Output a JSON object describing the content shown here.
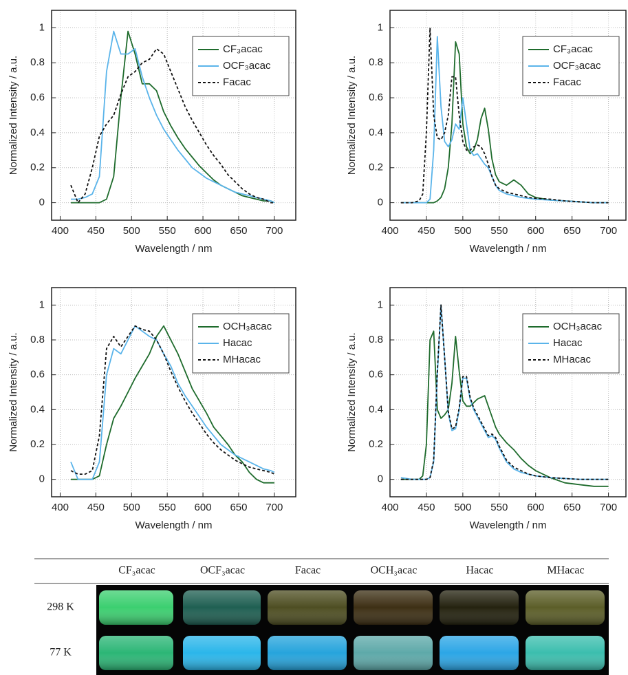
{
  "chart_data": [
    {
      "type": "line",
      "xlabel": "Wavelength / nm",
      "ylabel": "Normalized Intensity / a.u.",
      "xlim": [
        388,
        730
      ],
      "ylim": [
        -0.1,
        1.1
      ],
      "xticks": [
        400,
        450,
        500,
        550,
        600,
        650,
        700
      ],
      "yticks": [
        0,
        0.2,
        0.4,
        0.6,
        0.8,
        1
      ],
      "grid": true,
      "legend": "upper right",
      "x": [
        415,
        425,
        435,
        445,
        455,
        465,
        475,
        485,
        495,
        505,
        515,
        525,
        535,
        545,
        555,
        565,
        575,
        585,
        595,
        605,
        615,
        625,
        635,
        645,
        655,
        665,
        675,
        685,
        695,
        700
      ],
      "series": [
        {
          "name": "CF₃acac",
          "color": "#1e6b2c",
          "linestyle": "solid",
          "values": [
            0,
            0,
            0,
            0,
            0,
            0.02,
            0.15,
            0.6,
            0.98,
            0.85,
            0.68,
            0.68,
            0.64,
            0.52,
            0.44,
            0.37,
            0.31,
            0.26,
            0.21,
            0.17,
            0.13,
            0.1,
            0.08,
            0.06,
            0.04,
            0.03,
            0.02,
            0.01,
            0.01,
            0
          ]
        },
        {
          "name": "OCF₃acac",
          "color": "#5ab4ea",
          "linestyle": "solid",
          "values": [
            0.02,
            0.02,
            0.03,
            0.05,
            0.15,
            0.75,
            0.98,
            0.85,
            0.85,
            0.88,
            0.72,
            0.6,
            0.5,
            0.42,
            0.36,
            0.3,
            0.25,
            0.2,
            0.17,
            0.14,
            0.12,
            0.1,
            0.08,
            0.06,
            0.05,
            0.04,
            0.03,
            0.02,
            0.01,
            0
          ]
        },
        {
          "name": "Facac",
          "color": "#111111",
          "linestyle": "dashed",
          "values": [
            0.1,
            0,
            0.05,
            0.2,
            0.38,
            0.45,
            0.5,
            0.62,
            0.72,
            0.75,
            0.8,
            0.82,
            0.88,
            0.85,
            0.75,
            0.65,
            0.55,
            0.47,
            0.4,
            0.33,
            0.27,
            0.22,
            0.16,
            0.12,
            0.08,
            0.05,
            0.03,
            0.02,
            0,
            0
          ]
        }
      ]
    },
    {
      "type": "line",
      "xlabel": "Wavelength / nm",
      "ylabel": "Normalized Intensity / a.u.",
      "xlim": [
        400,
        724
      ],
      "ylim": [
        -0.1,
        1.1
      ],
      "xticks": [
        400,
        450,
        500,
        550,
        600,
        650,
        700
      ],
      "yticks": [
        0,
        0.2,
        0.4,
        0.6,
        0.8,
        1
      ],
      "grid": true,
      "legend": "upper right",
      "x": [
        415,
        430,
        440,
        445,
        450,
        455,
        460,
        465,
        470,
        475,
        480,
        485,
        490,
        495,
        500,
        505,
        510,
        515,
        520,
        525,
        530,
        535,
        540,
        545,
        550,
        560,
        570,
        580,
        590,
        600,
        620,
        640,
        660,
        680,
        700
      ],
      "series": [
        {
          "name": "CF₃acac",
          "color": "#1e6b2c",
          "linestyle": "solid",
          "values": [
            0,
            0,
            0,
            0,
            0,
            0,
            0,
            0.01,
            0.03,
            0.08,
            0.2,
            0.45,
            0.92,
            0.85,
            0.45,
            0.32,
            0.28,
            0.3,
            0.36,
            0.48,
            0.54,
            0.42,
            0.25,
            0.16,
            0.12,
            0.1,
            0.13,
            0.1,
            0.05,
            0.03,
            0.015,
            0.01,
            0.005,
            0,
            0
          ]
        },
        {
          "name": "OCF₃acac",
          "color": "#5ab4ea",
          "linestyle": "solid",
          "values": [
            0,
            0,
            0,
            0,
            0,
            0.02,
            0.3,
            0.95,
            0.55,
            0.35,
            0.32,
            0.36,
            0.45,
            0.42,
            0.6,
            0.45,
            0.3,
            0.27,
            0.28,
            0.25,
            0.22,
            0.2,
            0.15,
            0.1,
            0.07,
            0.05,
            0.04,
            0.03,
            0.025,
            0.02,
            0.015,
            0.01,
            0.005,
            0,
            0
          ]
        },
        {
          "name": "Facac",
          "color": "#111111",
          "linestyle": "dashed",
          "values": [
            0,
            0,
            0.01,
            0.05,
            0.4,
            1,
            0.5,
            0.37,
            0.36,
            0.4,
            0.5,
            0.72,
            0.72,
            0.5,
            0.35,
            0.3,
            0.3,
            0.32,
            0.33,
            0.32,
            0.28,
            0.22,
            0.15,
            0.1,
            0.08,
            0.06,
            0.05,
            0.04,
            0.03,
            0.025,
            0.02,
            0.01,
            0.005,
            0,
            0
          ]
        }
      ]
    },
    {
      "type": "line",
      "xlabel": "Wavelength / nm",
      "ylabel": "Normalized Intensity / a.u.",
      "xlim": [
        388,
        730
      ],
      "ylim": [
        -0.1,
        1.1
      ],
      "xticks": [
        400,
        450,
        500,
        550,
        600,
        650,
        700
      ],
      "yticks": [
        0,
        0.2,
        0.4,
        0.6,
        0.8,
        1
      ],
      "grid": true,
      "legend": "upper right",
      "x": [
        415,
        425,
        435,
        445,
        455,
        465,
        475,
        485,
        495,
        505,
        515,
        525,
        535,
        545,
        555,
        565,
        575,
        585,
        595,
        605,
        615,
        625,
        635,
        645,
        655,
        665,
        675,
        685,
        695,
        700
      ],
      "series": [
        {
          "name": "OCH₃acac",
          "color": "#1e6b2c",
          "linestyle": "solid",
          "values": [
            0,
            0,
            0,
            0,
            0.02,
            0.2,
            0.35,
            0.42,
            0.5,
            0.58,
            0.65,
            0.72,
            0.82,
            0.88,
            0.8,
            0.72,
            0.62,
            0.52,
            0.45,
            0.38,
            0.3,
            0.25,
            0.2,
            0.14,
            0.1,
            0.04,
            0,
            -0.02,
            -0.02,
            -0.02
          ]
        },
        {
          "name": "Hacac",
          "color": "#5ab4ea",
          "linestyle": "solid",
          "values": [
            0.1,
            0,
            0,
            0,
            0.1,
            0.6,
            0.75,
            0.72,
            0.8,
            0.88,
            0.85,
            0.82,
            0.8,
            0.72,
            0.65,
            0.55,
            0.48,
            0.42,
            0.36,
            0.3,
            0.25,
            0.2,
            0.17,
            0.14,
            0.12,
            0.1,
            0.08,
            0.06,
            0.05,
            0.04
          ]
        },
        {
          "name": "MHacac",
          "color": "#111111",
          "linestyle": "dashed",
          "values": [
            0.05,
            0.03,
            0.03,
            0.05,
            0.25,
            0.75,
            0.82,
            0.76,
            0.82,
            0.88,
            0.86,
            0.85,
            0.8,
            0.72,
            0.62,
            0.53,
            0.45,
            0.38,
            0.32,
            0.26,
            0.21,
            0.17,
            0.14,
            0.11,
            0.09,
            0.07,
            0.06,
            0.05,
            0.04,
            0.03
          ]
        }
      ]
    },
    {
      "type": "line",
      "xlabel": "Wavelength / nm",
      "ylabel": "Normalized Intensity / a.u.",
      "xlim": [
        400,
        724
      ],
      "ylim": [
        -0.1,
        1.1
      ],
      "xticks": [
        400,
        450,
        500,
        550,
        600,
        650,
        700
      ],
      "yticks": [
        0,
        0.2,
        0.4,
        0.6,
        0.8,
        1
      ],
      "grid": true,
      "legend": "upper right",
      "x": [
        415,
        430,
        440,
        445,
        450,
        455,
        460,
        465,
        470,
        475,
        480,
        485,
        490,
        495,
        500,
        505,
        510,
        515,
        520,
        525,
        530,
        535,
        540,
        545,
        550,
        560,
        570,
        580,
        590,
        600,
        620,
        640,
        660,
        680,
        700
      ],
      "series": [
        {
          "name": "OCH₃acac",
          "color": "#1e6b2c",
          "linestyle": "solid",
          "values": [
            0,
            0,
            0,
            0.02,
            0.2,
            0.8,
            0.85,
            0.4,
            0.35,
            0.37,
            0.4,
            0.55,
            0.82,
            0.62,
            0.45,
            0.42,
            0.42,
            0.44,
            0.46,
            0.47,
            0.48,
            0.42,
            0.36,
            0.3,
            0.26,
            0.21,
            0.17,
            0.12,
            0.08,
            0.05,
            0.01,
            -0.02,
            -0.03,
            -0.04,
            -0.04
          ]
        },
        {
          "name": "Hacac",
          "color": "#5ab4ea",
          "linestyle": "solid",
          "values": [
            0.01,
            0,
            0,
            0,
            0,
            0.01,
            0.1,
            0.6,
            1,
            0.7,
            0.38,
            0.28,
            0.29,
            0.4,
            0.58,
            0.58,
            0.46,
            0.4,
            0.36,
            0.32,
            0.28,
            0.24,
            0.25,
            0.23,
            0.18,
            0.1,
            0.06,
            0.04,
            0.03,
            0.02,
            0.01,
            0.005,
            0,
            0,
            0
          ]
        },
        {
          "name": "MHacac",
          "color": "#111111",
          "linestyle": "dashed",
          "values": [
            0,
            0,
            0,
            0,
            0,
            0.01,
            0.11,
            0.62,
            1,
            0.7,
            0.39,
            0.29,
            0.3,
            0.41,
            0.59,
            0.59,
            0.47,
            0.41,
            0.37,
            0.33,
            0.29,
            0.25,
            0.26,
            0.24,
            0.19,
            0.11,
            0.07,
            0.05,
            0.03,
            0.02,
            0.01,
            0.005,
            0,
            0,
            0
          ]
        }
      ]
    }
  ],
  "table": {
    "columns": [
      "CF₃acac",
      "OCF₃acac",
      "Facac",
      "OCH₃acac",
      "Hacac",
      "MHacac"
    ],
    "rows": [
      {
        "label": "298 K"
      },
      {
        "label": "77 K"
      }
    ]
  }
}
